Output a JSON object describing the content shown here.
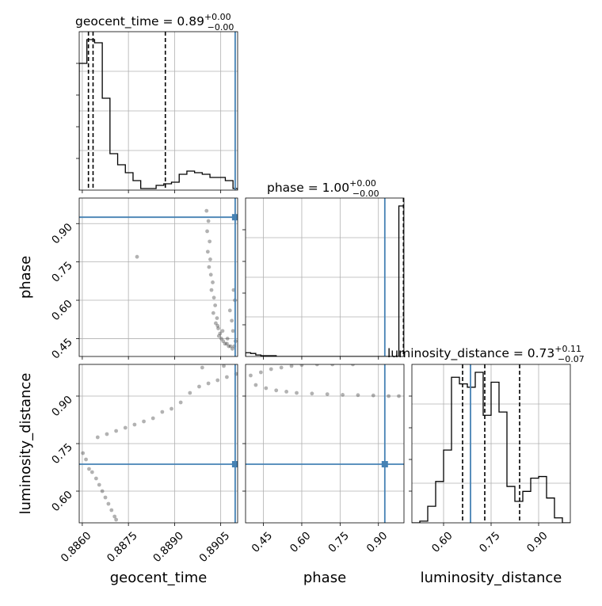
{
  "chart_data": {
    "type": "corner",
    "parameters": [
      "geocent_time",
      "phase",
      "luminosity_distance"
    ],
    "truths": {
      "geocent_time": 0.89097,
      "phase": 0.925,
      "luminosity_distance": 0.685
    },
    "titles": [
      {
        "param": "geocent_time",
        "text": "geocent_time = 0.89",
        "sup": "+0.00",
        "sub": "−0.00"
      },
      {
        "param": "phase",
        "text": "phase = 1.00",
        "sup": "+0.00",
        "sub": "−0.00"
      },
      {
        "param": "luminosity_distance",
        "text": "luminosity_distance = 0.73",
        "sup": "+0.11",
        "sub": "−0.07"
      }
    ],
    "axis_labels": {
      "geocent_time": "geocent_time",
      "phase": "phase",
      "luminosity_distance": "luminosity_distance"
    },
    "ranges": {
      "geocent_time": [
        0.8859,
        0.89105
      ],
      "phase": [
        0.38,
        1.0
      ],
      "luminosity_distance": [
        0.5,
        1.0
      ]
    },
    "ticks": {
      "geocent_time": {
        "values": [
          0.886,
          0.8875,
          0.889,
          0.8905
        ],
        "labels": [
          "0.8860",
          "0.8875",
          "0.8890",
          "0.8905"
        ]
      },
      "phase": {
        "values": [
          0.45,
          0.6,
          0.75,
          0.9
        ],
        "labels": [
          "0.45",
          "0.60",
          "0.75",
          "0.90"
        ]
      },
      "luminosity_distance": {
        "values": [
          0.6,
          0.75,
          0.9
        ],
        "labels": [
          "0.60",
          "0.75",
          "0.90"
        ]
      }
    },
    "histograms": {
      "geocent_time": {
        "edges": [
          0.8859,
          0.88615,
          0.8864,
          0.88665,
          0.8869,
          0.88715,
          0.8874,
          0.88765,
          0.8879,
          0.88815,
          0.8884,
          0.88865,
          0.8889,
          0.88915,
          0.8894,
          0.88965,
          0.8899,
          0.89015,
          0.8904,
          0.89065,
          0.8909,
          0.89105
        ],
        "counts": [
          80,
          95,
          93,
          58,
          23,
          16,
          11,
          6,
          1,
          1,
          3,
          4,
          5,
          10,
          12,
          11,
          10,
          8,
          8,
          6,
          1
        ],
        "quantiles": [
          0.8862,
          0.88635,
          0.8887
        ]
      },
      "phase": {
        "edges": [
          0.38,
          0.4,
          0.42,
          0.44,
          0.46,
          0.48,
          0.5,
          0.52,
          0.54,
          0.56,
          0.58,
          0.6,
          0.62,
          0.64,
          0.66,
          0.68,
          0.7,
          0.72,
          0.74,
          0.76,
          0.78,
          0.8,
          0.82,
          0.84,
          0.86,
          0.88,
          0.9,
          0.92,
          0.94,
          0.96,
          0.98,
          1.0
        ],
        "counts": [
          5,
          4,
          2,
          1,
          1,
          1,
          0,
          0,
          0,
          0,
          0,
          0,
          0,
          0,
          0,
          0,
          0,
          0,
          0,
          0,
          0,
          0,
          0,
          0,
          0,
          0,
          0,
          0,
          0,
          0,
          200
        ],
        "quantiles": [
          0.998,
          1.0,
          1.0
        ]
      },
      "luminosity_distance": {
        "edges": [
          0.5,
          0.525,
          0.55,
          0.575,
          0.6,
          0.625,
          0.65,
          0.675,
          0.7,
          0.725,
          0.75,
          0.775,
          0.8,
          0.825,
          0.85,
          0.875,
          0.9,
          0.925,
          0.95,
          0.975,
          1.0
        ],
        "counts": [
          0,
          1,
          10,
          25,
          44,
          88,
          84,
          82,
          91,
          65,
          85,
          67,
          22,
          13,
          19,
          27,
          28,
          15,
          3,
          0
        ],
        "quantiles": [
          0.66,
          0.73,
          0.84
        ]
      }
    },
    "scatter_2d": {
      "phase_vs_geocent_time": [
        [
          0.89004,
          0.95
        ],
        [
          0.8901,
          0.91
        ],
        [
          0.89006,
          0.87
        ],
        [
          0.89014,
          0.83
        ],
        [
          0.89008,
          0.79
        ],
        [
          0.89016,
          0.76
        ],
        [
          0.89012,
          0.73
        ],
        [
          0.89018,
          0.7
        ],
        [
          0.89024,
          0.67
        ],
        [
          0.8902,
          0.64
        ],
        [
          0.89028,
          0.61
        ],
        [
          0.89032,
          0.58
        ],
        [
          0.89026,
          0.55
        ],
        [
          0.89038,
          0.53
        ],
        [
          0.89034,
          0.51
        ],
        [
          0.89042,
          0.49
        ],
        [
          0.89048,
          0.47
        ],
        [
          0.89044,
          0.46
        ],
        [
          0.89052,
          0.45
        ],
        [
          0.89058,
          0.44
        ],
        [
          0.89064,
          0.43
        ],
        [
          0.8907,
          0.43
        ],
        [
          0.89076,
          0.42
        ],
        [
          0.89082,
          0.42
        ],
        [
          0.89088,
          0.41
        ],
        [
          0.89094,
          0.42
        ],
        [
          0.89098,
          0.44
        ],
        [
          0.8909,
          0.48
        ],
        [
          0.89086,
          0.52
        ],
        [
          0.8908,
          0.56
        ],
        [
          0.89096,
          0.6
        ],
        [
          0.89092,
          0.64
        ],
        [
          0.88778,
          0.77
        ],
        [
          0.8904,
          0.5
        ],
        [
          0.89056,
          0.48
        ],
        [
          0.89072,
          0.45
        ]
      ],
      "luminosity_distance_vs_geocent_time": [
        [
          0.88602,
          0.72
        ],
        [
          0.88612,
          0.7
        ],
        [
          0.88622,
          0.67
        ],
        [
          0.88632,
          0.66
        ],
        [
          0.88645,
          0.64
        ],
        [
          0.88655,
          0.62
        ],
        [
          0.88665,
          0.6
        ],
        [
          0.88675,
          0.58
        ],
        [
          0.88685,
          0.56
        ],
        [
          0.88695,
          0.54
        ],
        [
          0.88705,
          0.52
        ],
        [
          0.8871,
          0.51
        ],
        [
          0.8865,
          0.77
        ],
        [
          0.8868,
          0.78
        ],
        [
          0.8871,
          0.79
        ],
        [
          0.8874,
          0.8
        ],
        [
          0.8877,
          0.81
        ],
        [
          0.888,
          0.82
        ],
        [
          0.8883,
          0.83
        ],
        [
          0.8886,
          0.85
        ],
        [
          0.8889,
          0.86
        ],
        [
          0.8892,
          0.88
        ],
        [
          0.8895,
          0.91
        ],
        [
          0.8898,
          0.93
        ],
        [
          0.8901,
          0.94
        ],
        [
          0.8904,
          0.95
        ],
        [
          0.8907,
          0.96
        ],
        [
          0.891,
          0.97
        ],
        [
          0.8899,
          0.99
        ],
        [
          0.8906,
          0.995
        ]
      ],
      "luminosity_distance_vs_phase": [
        [
          0.4,
          0.965
        ],
        [
          0.44,
          0.975
        ],
        [
          0.48,
          0.985
        ],
        [
          0.52,
          0.99
        ],
        [
          0.56,
          0.995
        ],
        [
          0.6,
          0.998
        ],
        [
          0.66,
          1.0
        ],
        [
          0.72,
          1.0
        ],
        [
          0.8,
          1.0
        ],
        [
          0.42,
          0.935
        ],
        [
          0.46,
          0.925
        ],
        [
          0.5,
          0.918
        ],
        [
          0.54,
          0.914
        ],
        [
          0.58,
          0.91
        ],
        [
          0.64,
          0.908
        ],
        [
          0.7,
          0.906
        ],
        [
          0.76,
          0.904
        ],
        [
          0.82,
          0.903
        ],
        [
          0.88,
          0.902
        ],
        [
          0.94,
          0.9
        ],
        [
          0.98,
          0.9
        ]
      ]
    },
    "colors": {
      "truth": "#4682b4",
      "hist": "#000000",
      "grid": "#b0b0b0"
    }
  }
}
